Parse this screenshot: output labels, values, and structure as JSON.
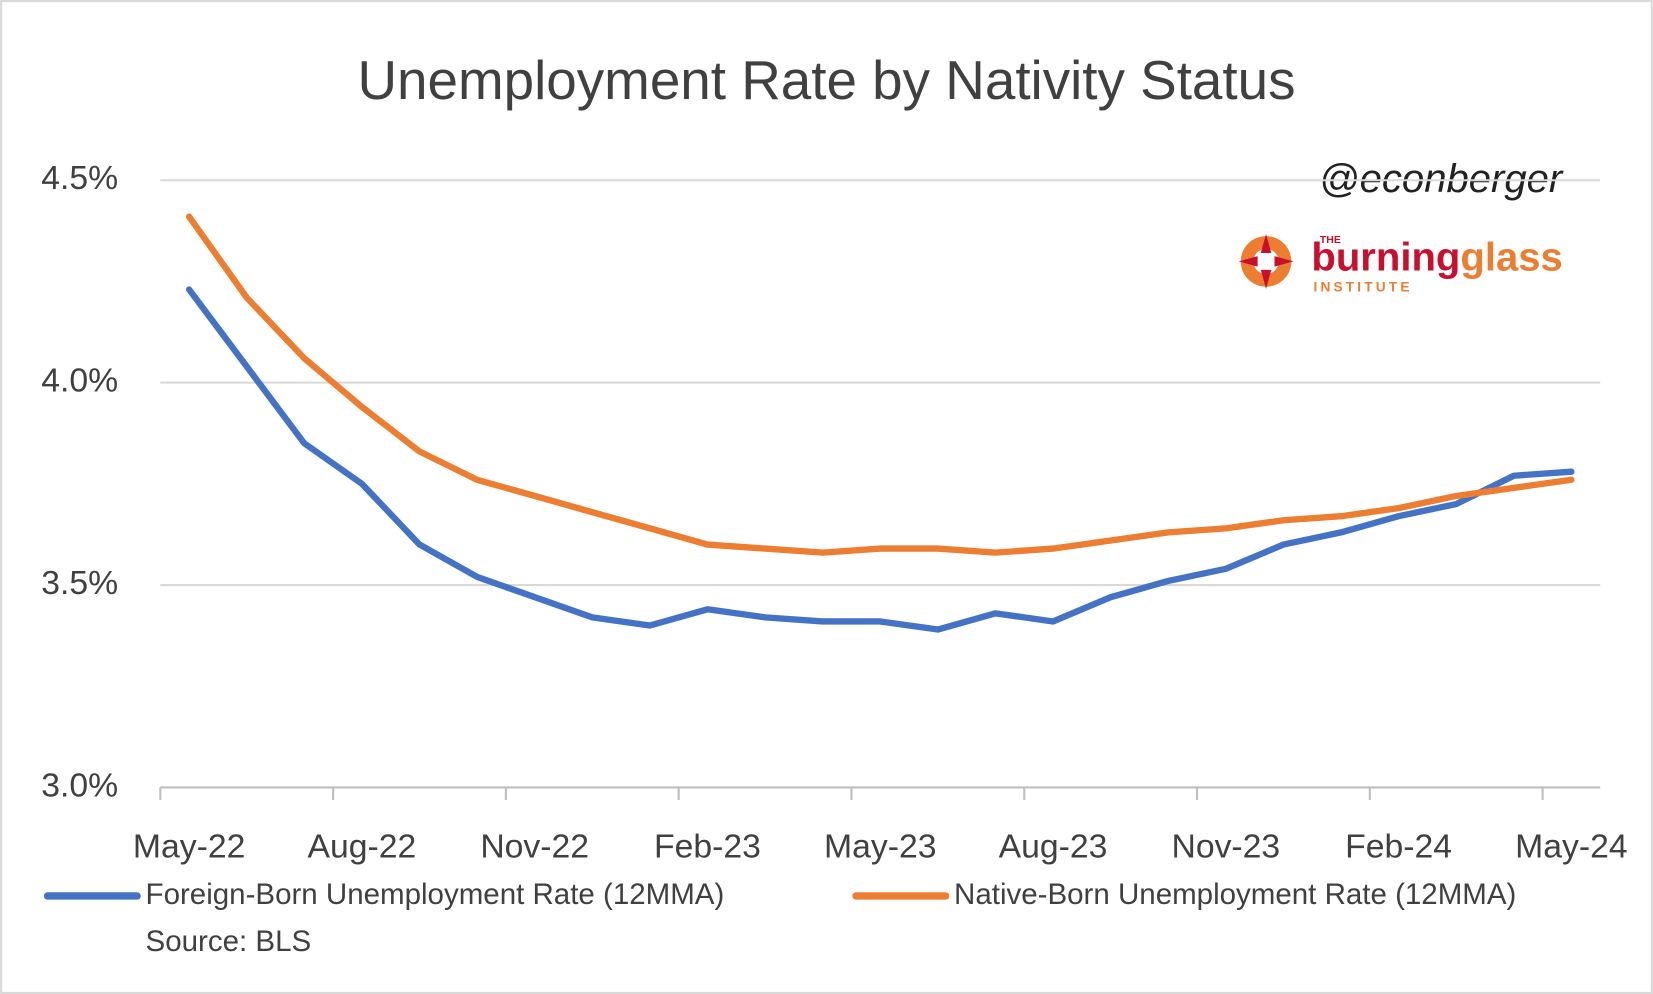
{
  "chart_data": {
    "type": "line",
    "title": "Unemployment Rate by Nativity Status",
    "annotations": {
      "handle": "@econberger",
      "logo_top": "THE",
      "logo_name_a": "burning",
      "logo_name_b": "glass",
      "logo_bottom": "INSTITUTE"
    },
    "source": "Source: BLS",
    "categories": [
      "May-22",
      null,
      null,
      "Aug-22",
      null,
      null,
      "Nov-22",
      null,
      null,
      "Feb-23",
      null,
      null,
      "May-23",
      null,
      null,
      "Aug-23",
      null,
      null,
      "Nov-23",
      null,
      null,
      "Feb-24",
      null,
      null,
      "May-24"
    ],
    "series": [
      {
        "name": "Foreign-Born Unemployment Rate (12MMA)",
        "color": "#4472c4",
        "values": [
          4.23,
          4.04,
          3.85,
          3.75,
          3.6,
          3.52,
          3.47,
          3.42,
          3.4,
          3.44,
          3.42,
          3.41,
          3.41,
          3.39,
          3.43,
          3.41,
          3.47,
          3.51,
          3.54,
          3.6,
          3.63,
          3.67,
          3.7,
          3.77,
          3.78
        ]
      },
      {
        "name": "Native-Born Unemployment Rate (12MMA)",
        "color": "#ed7d31",
        "values": [
          4.41,
          4.21,
          4.06,
          3.94,
          3.83,
          3.76,
          3.72,
          3.68,
          3.64,
          3.6,
          3.59,
          3.58,
          3.59,
          3.59,
          3.58,
          3.59,
          3.61,
          3.63,
          3.64,
          3.66,
          3.67,
          3.69,
          3.72,
          3.74,
          3.76
        ]
      }
    ],
    "ylim": [
      3.0,
      4.5
    ],
    "yticks": [
      {
        "value": 3.0,
        "label": "3.0%"
      },
      {
        "value": 3.5,
        "label": "3.5%"
      },
      {
        "value": 4.0,
        "label": "4.0%"
      },
      {
        "value": 4.5,
        "label": "4.5%"
      }
    ],
    "grid": true
  }
}
